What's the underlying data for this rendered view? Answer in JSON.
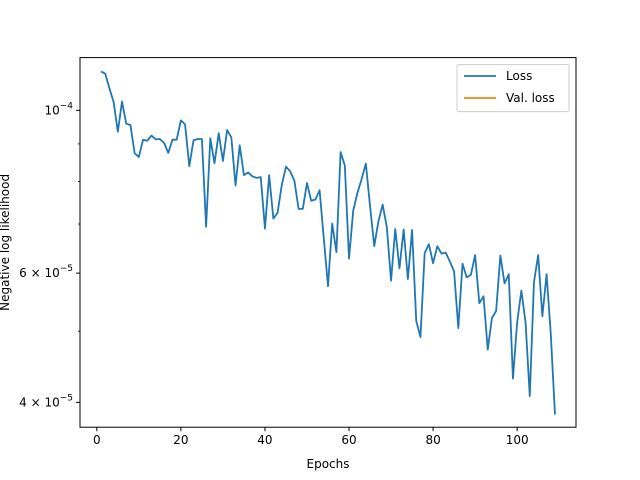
{
  "chart_data": {
    "type": "line",
    "title": "",
    "xlabel": "Epochs",
    "ylabel": "Negative log likelihood",
    "yscale": "log",
    "xlim": [
      -4,
      114
    ],
    "ylim": [
      3.7e-05,
      0.000118
    ],
    "x_ticks": [
      {
        "value": 0,
        "label": "0"
      },
      {
        "value": 20,
        "label": "20"
      },
      {
        "value": 40,
        "label": "40"
      },
      {
        "value": 60,
        "label": "60"
      },
      {
        "value": 80,
        "label": "80"
      },
      {
        "value": 100,
        "label": "100"
      }
    ],
    "y_ticks": [
      {
        "value": 4e-05,
        "base": "4 × 10",
        "exp": "−5"
      },
      {
        "value": 6e-05,
        "base": "6 × 10",
        "exp": "−5"
      },
      {
        "value": 0.0001,
        "base": "10",
        "exp": "−4"
      }
    ],
    "grid": false,
    "legend_position": "top-right",
    "series": [
      {
        "name": "Loss",
        "color": "#1f77b4",
        "x": [
          1,
          2,
          3,
          4,
          5,
          6,
          7,
          8,
          9,
          10,
          11,
          12,
          13,
          14,
          15,
          16,
          17,
          18,
          19,
          20,
          21,
          22,
          23,
          24,
          25,
          26,
          27,
          28,
          29,
          30,
          31,
          32,
          33,
          34,
          35,
          36,
          37,
          38,
          39,
          40,
          41,
          42,
          43,
          44,
          45,
          46,
          47,
          48,
          49,
          50,
          51,
          52,
          53,
          54,
          55,
          56,
          57,
          58,
          59,
          60,
          61,
          62,
          63,
          64,
          65,
          66,
          67,
          68,
          69,
          70,
          71,
          72,
          73,
          74,
          75,
          76,
          77,
          78,
          79,
          80,
          81,
          82,
          83,
          84,
          85,
          86,
          87,
          88,
          89,
          90,
          91,
          92,
          93,
          94,
          95,
          96,
          97,
          98,
          99,
          100,
          101,
          102,
          103,
          104,
          105,
          106,
          107,
          108,
          109
        ],
        "y": [
          0.000113,
          0.0001122,
          0.0001072,
          0.0001026,
          9.35e-05,
          0.0001028,
          9.59e-05,
          9.55e-05,
          8.74e-05,
          8.64e-05,
          9.12e-05,
          9.09e-05,
          9.24e-05,
          9.13e-05,
          9.14e-05,
          9.03e-05,
          8.75e-05,
          9.12e-05,
          9.12e-05,
          9.69e-05,
          9.57e-05,
          8.39e-05,
          9.1e-05,
          9.14e-05,
          9.14e-05,
          6.94e-05,
          9.16e-05,
          8.47e-05,
          9.31e-05,
          8.53e-05,
          9.4e-05,
          9.19e-05,
          7.9e-05,
          8.96e-05,
          8.16e-05,
          8.23e-05,
          8.13e-05,
          8.09e-05,
          8.11e-05,
          6.9e-05,
          8.16e-05,
          7.12e-05,
          7.25e-05,
          7.91e-05,
          8.38e-05,
          8.26e-05,
          8.02e-05,
          7.34e-05,
          7.34e-05,
          7.96e-05,
          7.53e-05,
          7.56e-05,
          7.78e-05,
          6.69e-05,
          5.76e-05,
          7.01e-05,
          6.41e-05,
          8.77e-05,
          8.41e-05,
          6.28e-05,
          7.3e-05,
          7.72e-05,
          8.06e-05,
          8.46e-05,
          7.41e-05,
          6.53e-05,
          7.06e-05,
          7.44e-05,
          6.93e-05,
          5.86e-05,
          6.89e-05,
          6.09e-05,
          6.88e-05,
          5.89e-05,
          6.87e-05,
          5.16e-05,
          4.91e-05,
          6.39e-05,
          6.57e-05,
          6.19e-05,
          6.53e-05,
          6.38e-05,
          6.4e-05,
          6.22e-05,
          6.03e-05,
          5.05e-05,
          6.18e-05,
          5.92e-05,
          5.97e-05,
          6.35e-05,
          5.46e-05,
          5.58e-05,
          4.72e-05,
          5.21e-05,
          5.33e-05,
          6.34e-05,
          5.81e-05,
          5.98e-05,
          4.31e-05,
          5.14e-05,
          5.68e-05,
          5.14e-05,
          4.08e-05,
          5.83e-05,
          6.35e-05,
          5.24e-05,
          5.98e-05,
          4.96e-05,
          3.85e-05
        ]
      },
      {
        "name": "Val. loss",
        "color": "#ff7f0e",
        "x": [],
        "y": []
      }
    ]
  }
}
